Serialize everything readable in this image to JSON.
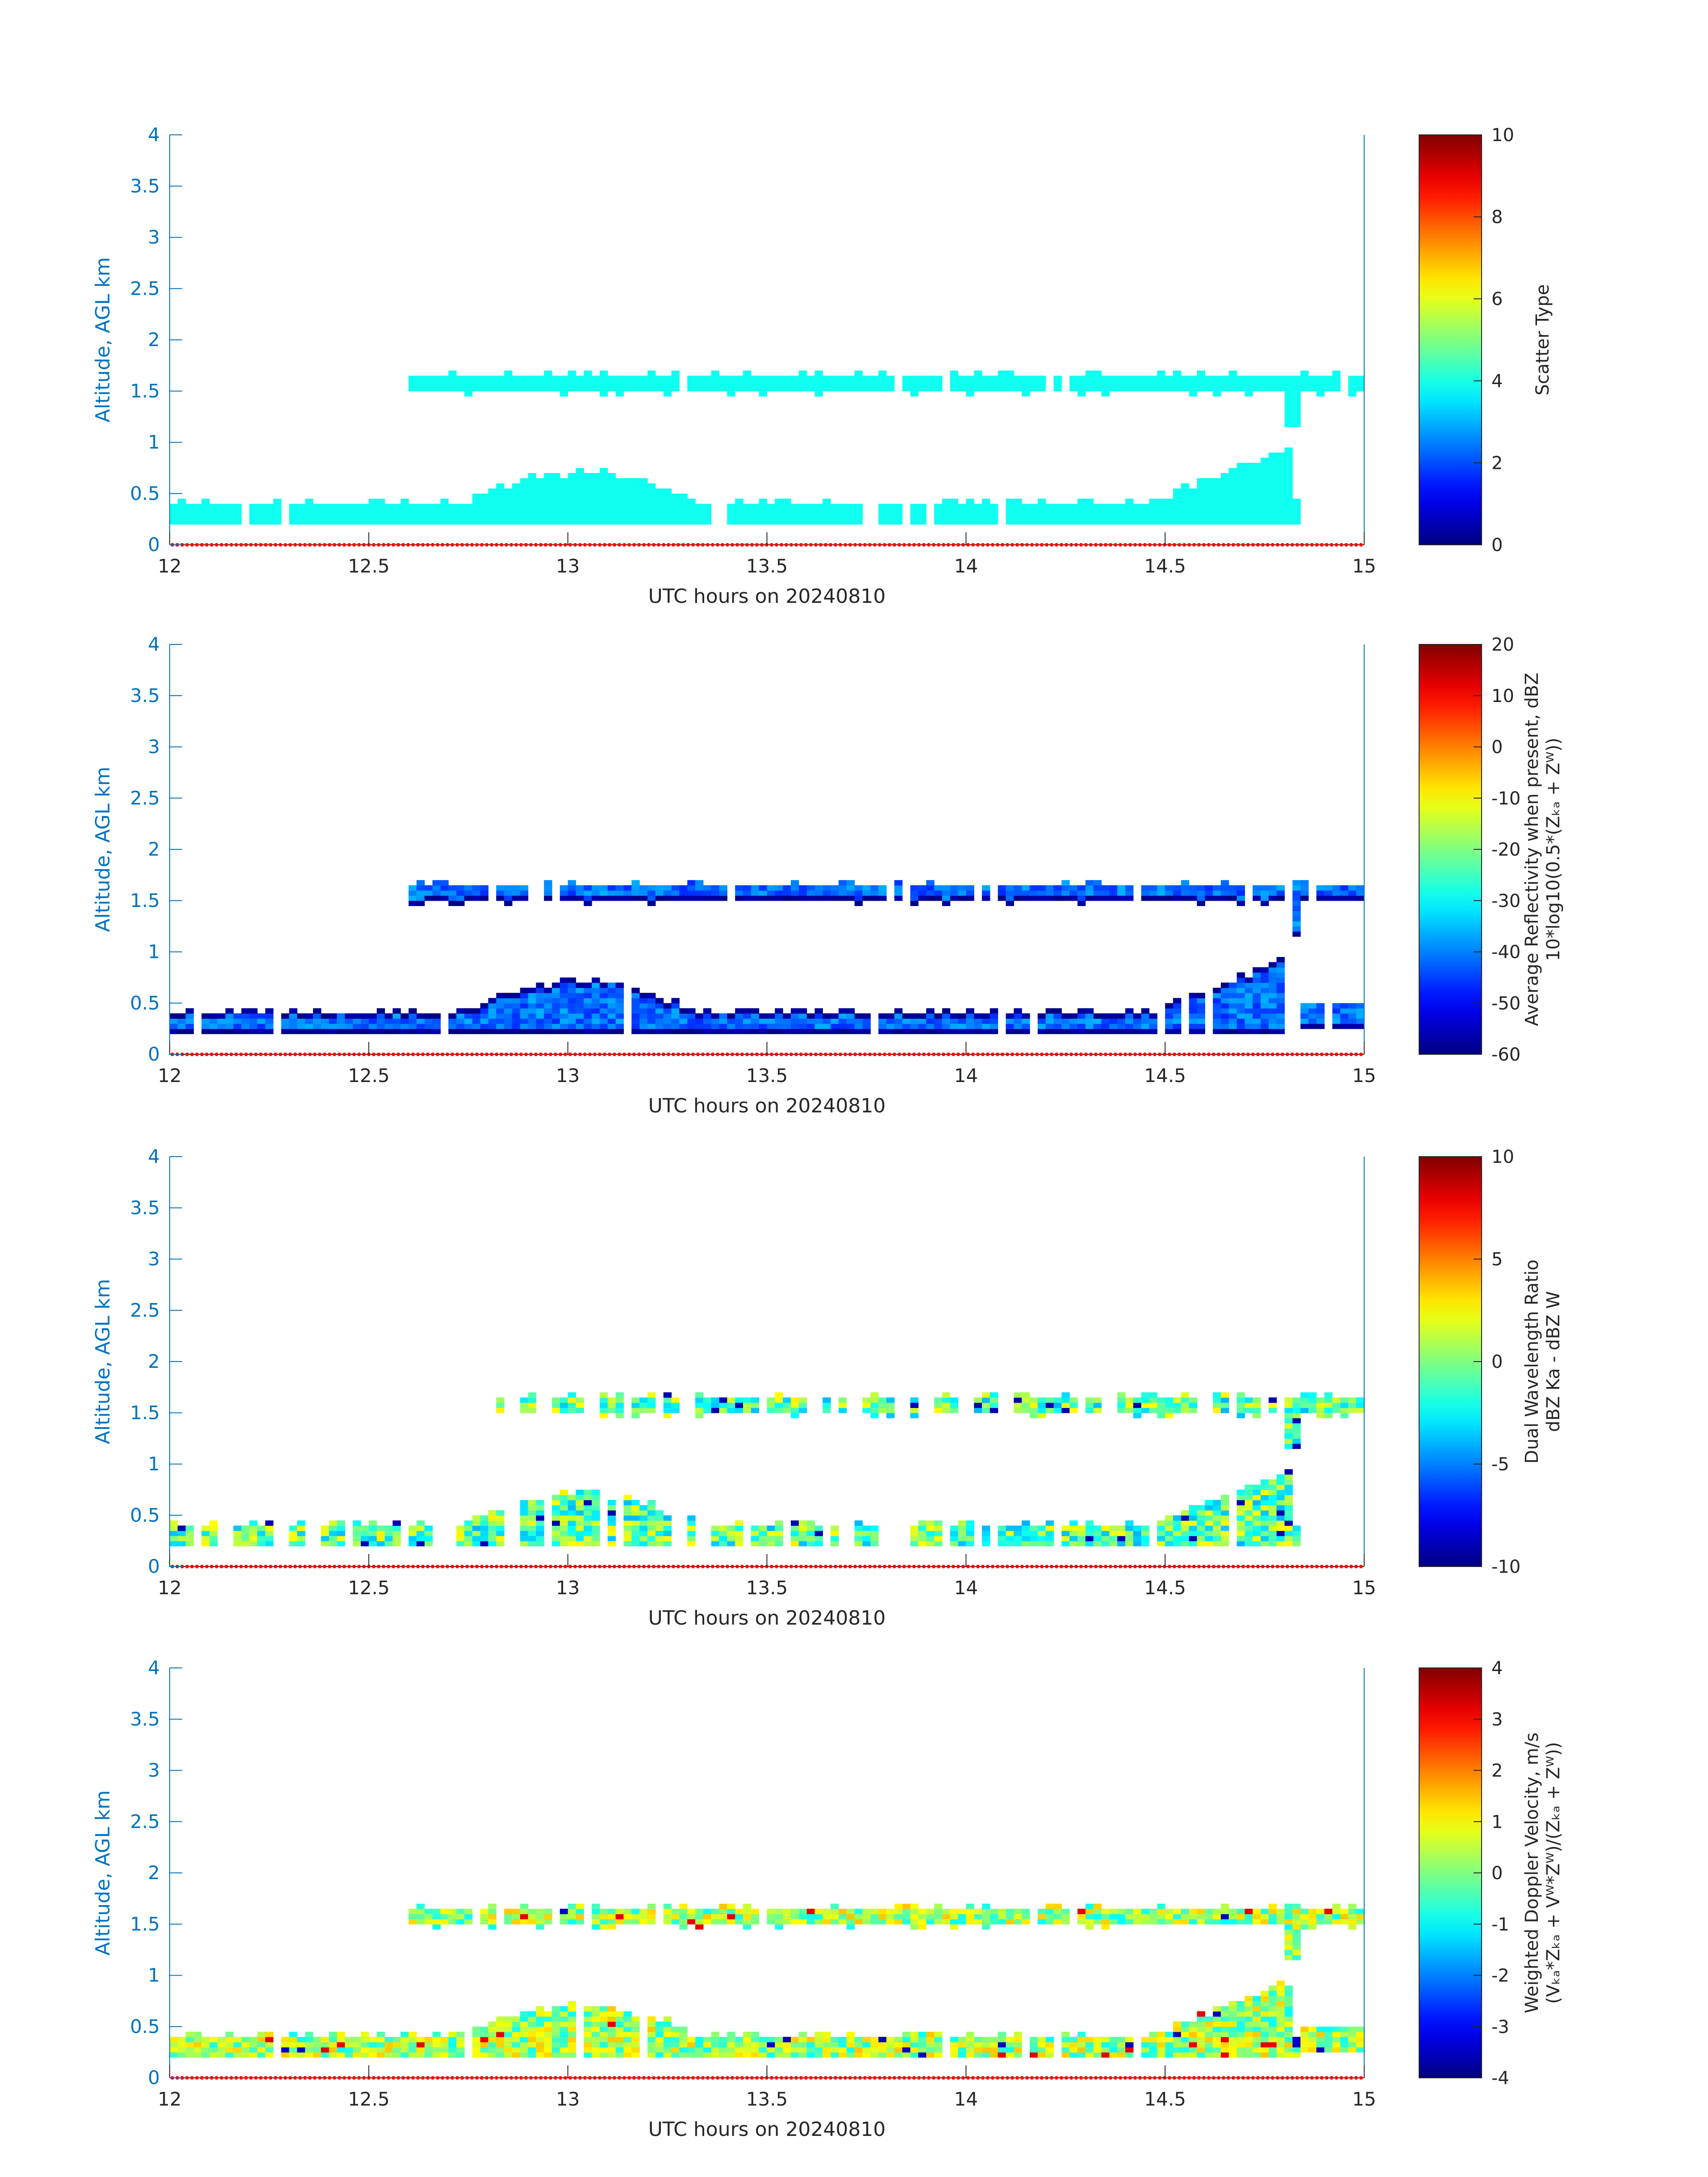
{
  "chart_data": [
    {
      "type": "heatmap",
      "panel": 1,
      "xlabel": "UTC hours on 20240810",
      "ylabel": "Altitude, AGL km",
      "xlim": [
        12,
        15
      ],
      "ylim": [
        0,
        4
      ],
      "xticks": [
        "12",
        "12.5",
        "13",
        "13.5",
        "14",
        "14.5",
        "15"
      ],
      "yticks": [
        "0",
        "0.5",
        "1",
        "1.5",
        "2",
        "2.5",
        "3",
        "3.5",
        "4"
      ],
      "colorbar": {
        "label_lines": [
          "Scatter Type"
        ],
        "clim": [
          0,
          10
        ],
        "ticks": [
          "0",
          "2",
          "4",
          "6",
          "8",
          "10"
        ]
      },
      "colormap": "jet",
      "field": "scatter",
      "fill_value": 3.9,
      "layers": [
        {
          "name": "upper",
          "t_start": 12.6,
          "t_end": 15.0,
          "base_km": 1.5,
          "top_km": 1.65
        },
        {
          "name": "lower",
          "t_start": 12.0,
          "t_end": 14.85,
          "base_km": 0.2,
          "top_km": 0.35
        }
      ]
    },
    {
      "type": "heatmap",
      "panel": 2,
      "xlabel": "UTC hours on 20240810",
      "ylabel": "Altitude, AGL km",
      "xlim": [
        12,
        15
      ],
      "ylim": [
        0,
        4
      ],
      "xticks": [
        "12",
        "12.5",
        "13",
        "13.5",
        "14",
        "14.5",
        "15"
      ],
      "yticks": [
        "0",
        "0.5",
        "1",
        "1.5",
        "2",
        "2.5",
        "3",
        "3.5",
        "4"
      ],
      "colorbar": {
        "label_lines": [
          "Average Reflectivity when present, dBZ",
          "10*log10(0.5*(Zₖₐ + Zᵂ))"
        ],
        "clim": [
          -60,
          20
        ],
        "ticks": [
          "-60",
          "-50",
          "-40",
          "-30",
          "-20",
          "-10",
          "0",
          "10",
          "20"
        ]
      },
      "colormap": "jet",
      "field": "reflectivity",
      "fill_range": [
        -60,
        -36
      ],
      "layers": [
        {
          "name": "upper",
          "t_start": 12.6,
          "t_end": 15.0,
          "base_km": 1.5,
          "top_km": 1.65
        },
        {
          "name": "lower",
          "t_start": 12.0,
          "t_end": 15.0,
          "base_km": 0.2,
          "top_km": 0.35
        }
      ]
    },
    {
      "type": "heatmap",
      "panel": 3,
      "xlabel": "UTC hours on 20240810",
      "ylabel": "Altitude, AGL km",
      "xlim": [
        12,
        15
      ],
      "ylim": [
        0,
        4
      ],
      "xticks": [
        "12",
        "12.5",
        "13",
        "13.5",
        "14",
        "14.5",
        "15"
      ],
      "yticks": [
        "0",
        "0.5",
        "1",
        "1.5",
        "2",
        "2.5",
        "3",
        "3.5",
        "4"
      ],
      "colorbar": {
        "label_lines": [
          "Dual Wavelength Ratio",
          "dBZ Ka - dBZ W"
        ],
        "clim": [
          -10,
          10
        ],
        "ticks": [
          "-10",
          "-5",
          "0",
          "5",
          "10"
        ]
      },
      "colormap": "jet",
      "field": "dwr",
      "fill_range": [
        -4,
        3
      ],
      "layers": [
        {
          "name": "upper",
          "t_start": 12.78,
          "t_end": 15.0,
          "base_km": 1.5,
          "top_km": 1.65
        },
        {
          "name": "lower",
          "t_start": 12.0,
          "t_end": 14.85,
          "base_km": 0.2,
          "top_km": 0.35
        }
      ]
    },
    {
      "type": "heatmap",
      "panel": 4,
      "xlabel": "UTC hours on 20240810",
      "ylabel": "Altitude, AGL km",
      "xlim": [
        12,
        15
      ],
      "ylim": [
        0,
        4
      ],
      "xticks": [
        "12",
        "12.5",
        "13",
        "13.5",
        "14",
        "14.5",
        "15"
      ],
      "yticks": [
        "0",
        "0.5",
        "1",
        "1.5",
        "2",
        "2.5",
        "3",
        "3.5",
        "4"
      ],
      "colorbar": {
        "label_lines": [
          "Weighted Doppler Velocity, m/s",
          "(Vₖₐ*Zₖₐ + Vᵂ*Zᵂ)/(Zₖₐ + Zᵂ))"
        ],
        "clim": [
          -4,
          4
        ],
        "ticks": [
          "-4",
          "-3",
          "-2",
          "-1",
          "0",
          "1",
          "2",
          "3",
          "4"
        ]
      },
      "colormap": "jet",
      "field": "doppler",
      "fill_range": [
        -1,
        1.5
      ],
      "layers": [
        {
          "name": "upper",
          "t_start": 12.6,
          "t_end": 15.0,
          "base_km": 1.5,
          "top_km": 1.65
        },
        {
          "name": "lower",
          "t_start": 12.0,
          "t_end": 15.0,
          "base_km": 0.2,
          "top_km": 0.35
        }
      ]
    }
  ],
  "colors": {
    "axis_blue": "#0072BD",
    "text_dark": "#262626",
    "ground_marker": "#ff0000"
  }
}
